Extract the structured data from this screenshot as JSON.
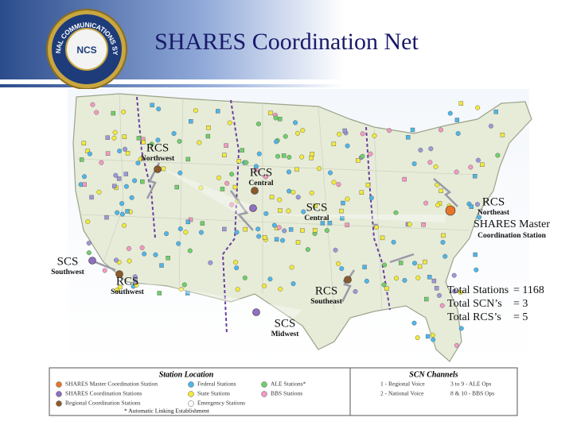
{
  "header": {
    "title": "SHARES Coordination Net",
    "logo": {
      "ring": "NATIONAL COMMUNICATIONS SYSTEM",
      "center": "NCS"
    }
  },
  "map": {
    "stations": [
      {
        "code": "RCS",
        "region": "Northwest"
      },
      {
        "code": "RCS",
        "region": "Central"
      },
      {
        "code": "SCS",
        "region": "Central"
      },
      {
        "code": "RCS",
        "region": "Northeast"
      },
      {
        "code": "SCS",
        "region": "Southwest"
      },
      {
        "code": "RCS",
        "region": "Southwest"
      },
      {
        "code": "RCS",
        "region": "Southeast"
      },
      {
        "code": "SCS",
        "region": "Midwest"
      }
    ],
    "master": {
      "label": "SHARES Master",
      "sub": "Coordination Station"
    }
  },
  "totals": [
    {
      "label": "Total Stations",
      "value": "= 1168"
    },
    {
      "label": "Total SCN’s",
      "value": "= 3"
    },
    {
      "label": "Total RCS’s",
      "value": "= 5"
    }
  ],
  "legend": {
    "location": {
      "title": "Station Location",
      "items": [
        "SHARES Master Coordination Station",
        "SHARES Coordination Stations",
        "Regional Coordination Stations",
        "Federal Stations",
        "State Stations",
        "Emergency Stations",
        "ALE Stations*",
        "BBS Stations"
      ]
    },
    "channels": {
      "title": "SCN Channels",
      "items": [
        "1 - Regional Voice",
        "2 - National Voice",
        "3 to 9 - ALE Ops",
        "8 & 10 - BBS Ops"
      ]
    },
    "footnote": "* Automatic Linking Establishment"
  }
}
